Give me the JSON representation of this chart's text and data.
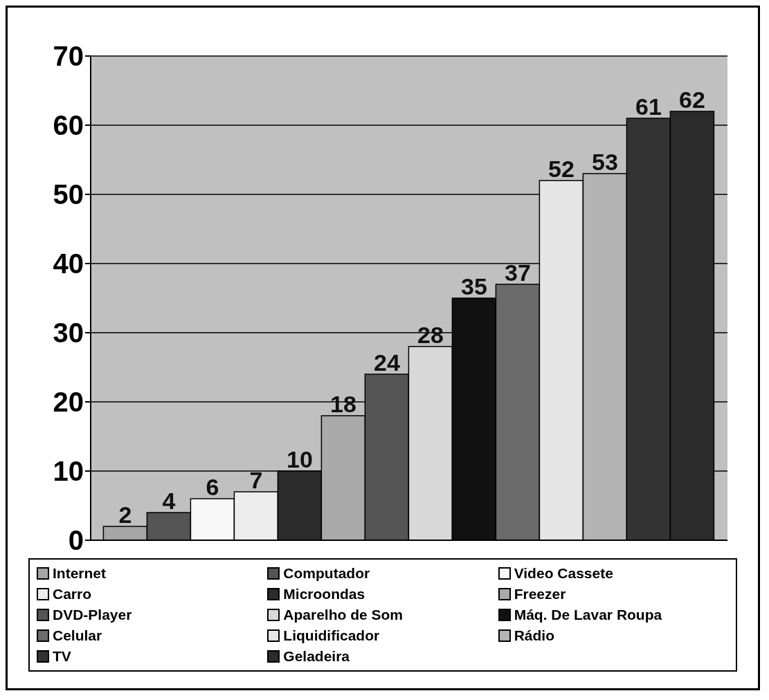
{
  "chart_data": {
    "type": "bar",
    "categories": [
      null
    ],
    "series": [
      {
        "name": "Internet",
        "color": "#a6a6a6",
        "values": [
          2
        ]
      },
      {
        "name": "Computador",
        "color": "#555555",
        "values": [
          4
        ]
      },
      {
        "name": "Video Cassete",
        "color": "#f8f8f8",
        "values": [
          6
        ]
      },
      {
        "name": "Carro",
        "color": "#ececec",
        "values": [
          7
        ]
      },
      {
        "name": "Microondas",
        "color": "#2b2b2b",
        "values": [
          10
        ]
      },
      {
        "name": "Freezer",
        "color": "#aaaaaa",
        "values": [
          18
        ]
      },
      {
        "name": "DVD-Player",
        "color": "#555555",
        "values": [
          24
        ]
      },
      {
        "name": "Aparelho de Som",
        "color": "#d9d9d9",
        "values": [
          28
        ]
      },
      {
        "name": "Máq. De Lavar Roupa",
        "color": "#111111",
        "values": [
          35
        ]
      },
      {
        "name": "Celular",
        "color": "#6b6b6b",
        "values": [
          37
        ]
      },
      {
        "name": "Liquidificador",
        "color": "#e6e6e6",
        "values": [
          52
        ]
      },
      {
        "name": "Rádio",
        "color": "#b3b3b3",
        "values": [
          53
        ]
      },
      {
        "name": "TV",
        "color": "#333333",
        "values": [
          61
        ]
      },
      {
        "name": "Geladeira",
        "color": "#2b2b2b",
        "values": [
          62
        ]
      }
    ],
    "ylim": [
      0,
      70
    ],
    "yticks": [
      0,
      10,
      20,
      30,
      40,
      50,
      60,
      70
    ],
    "grid": "y",
    "legend": "bottom",
    "data_labels": true
  }
}
